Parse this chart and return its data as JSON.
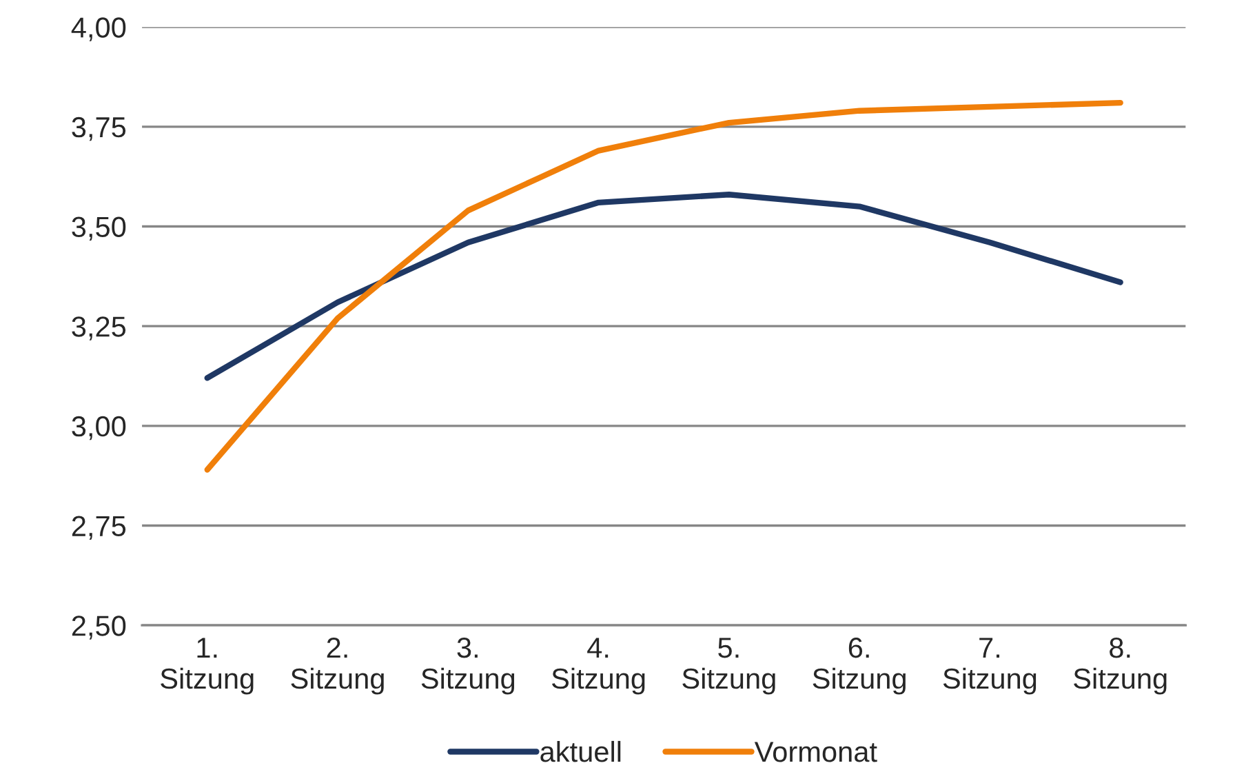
{
  "chart_data": {
    "type": "line",
    "categories": [
      "1.\nSitzung",
      "2.\nSitzung",
      "3.\nSitzung",
      "4.\nSitzung",
      "5.\nSitzung",
      "6.\nSitzung",
      "7.\nSitzung",
      "8.\nSitzung"
    ],
    "series": [
      {
        "name": "aktuell",
        "color": "#1f3864",
        "values": [
          3.12,
          3.31,
          3.46,
          3.56,
          3.58,
          3.55,
          3.46,
          3.36
        ]
      },
      {
        "name": "Vormonat",
        "color": "#f07f0a",
        "values": [
          2.89,
          3.27,
          3.54,
          3.69,
          3.76,
          3.79,
          3.8,
          3.81
        ]
      }
    ],
    "ylim": [
      2.5,
      4.0
    ],
    "yticks": [
      {
        "value": 2.5,
        "label": "2,50"
      },
      {
        "value": 2.75,
        "label": "2,75"
      },
      {
        "value": 3.0,
        "label": "3,00"
      },
      {
        "value": 3.25,
        "label": "3,25"
      },
      {
        "value": 3.5,
        "label": "3,50"
      },
      {
        "value": 3.75,
        "label": "3,75"
      },
      {
        "value": 4.0,
        "label": "4,00"
      }
    ],
    "grid": "y",
    "legend": "bottom",
    "marker": "none",
    "line_style": "solid"
  }
}
